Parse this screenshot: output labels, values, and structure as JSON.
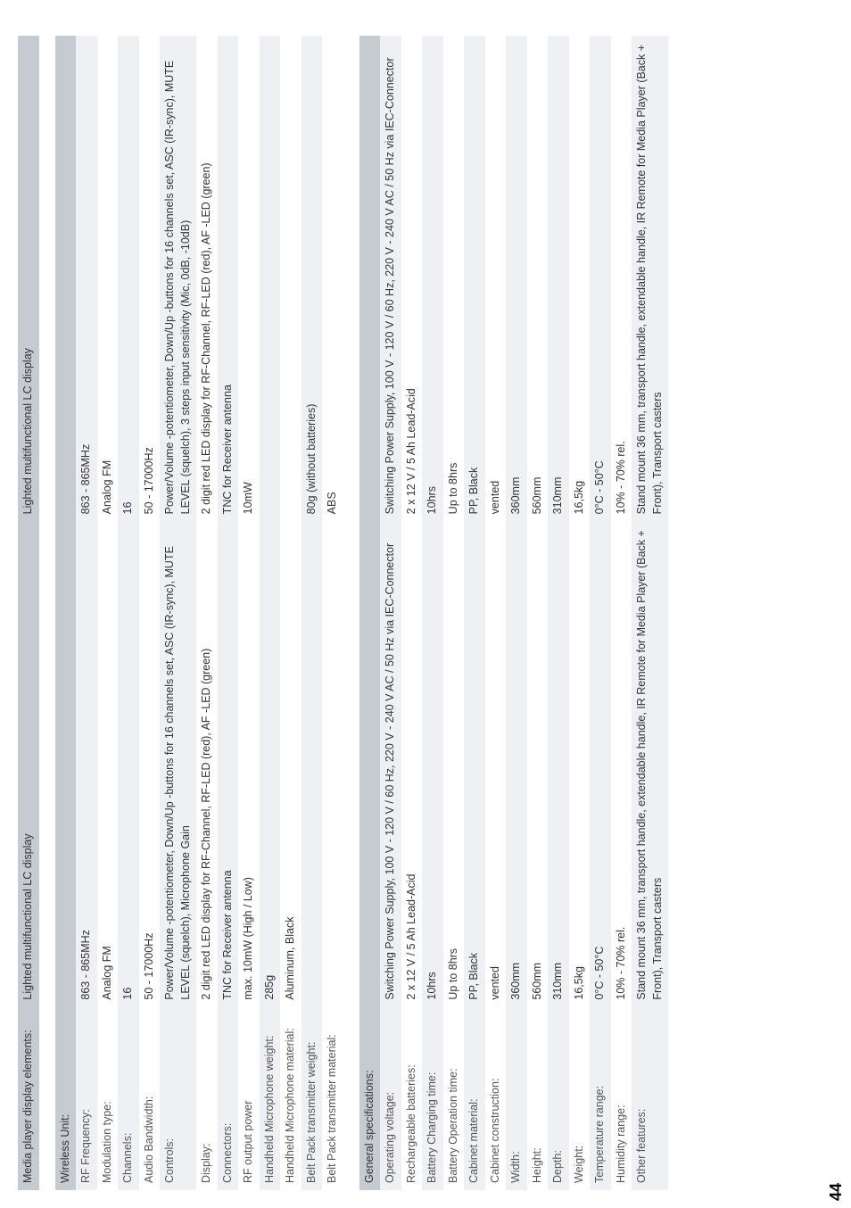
{
  "page_number": "44",
  "header": {
    "label": "Media player display elements:",
    "col1": "Lighted multifunctional LC display",
    "col2": "Lighted multifunctional LC display"
  },
  "sections": [
    {
      "title": "Wireless Unit:",
      "rows": [
        {
          "label": "RF Frequency:",
          "c1": "863 - 865MHz",
          "c2": "863 - 865MHz",
          "stripe": "light"
        },
        {
          "label": "Modulation type:",
          "c1": "Analog FM",
          "c2": "Analog FM",
          "stripe": "white"
        },
        {
          "label": "Channels:",
          "c1": "16",
          "c2": "16",
          "stripe": "light"
        },
        {
          "label": "Audio Bandwidth:",
          "c1": "50 - 17000Hz",
          "c2": "50 - 17000Hz",
          "stripe": "white"
        },
        {
          "label": "Controls:",
          "c1": "Power/Volume -potentiometer, Down/Up -buttons for 16 channels set, ASC (IR-sync), MUTE LEVEL (squelch), Microphone Gain",
          "c2": "Power/Volume -potentiometer, Down/Up -buttons for 16 channels set, ASC (IR-sync), MUTE LEVEL (squelch), 3 steps input sensitivity (Mic, 0dB, -10dB)",
          "stripe": "light"
        },
        {
          "label": "Display:",
          "c1": "2 digit red LED display for RF-Channel, RF-LED (red), AF -LED (green)",
          "c2": "2 digit red LED display for RF-Channel, RF-LED (red), AF -LED (green)",
          "stripe": "white"
        },
        {
          "label": "Connectors:",
          "c1": "TNC for Receiver antenna",
          "c2": "TNC for Receiver antenna",
          "stripe": "light"
        },
        {
          "label": "RF output power",
          "c1": "max. 10mW (High / Low)",
          "c2": "10mW",
          "stripe": "white"
        },
        {
          "label": "Handheld Microphone weight:",
          "c1": "285g",
          "c2": "",
          "stripe": "light"
        },
        {
          "label": "Handheld Microphone material:",
          "c1": "Aluminum, Black",
          "c2": "",
          "stripe": "white"
        },
        {
          "label": "Belt Pack transmitter weight:",
          "c1": "",
          "c2": "80g (without batteries)",
          "stripe": "light"
        },
        {
          "label": "Belt Pack transmitter material:",
          "c1": "",
          "c2": "ABS",
          "stripe": "white"
        }
      ]
    },
    {
      "title": "General specifications:",
      "rows": [
        {
          "label": "Operating voltage:",
          "c1": "Switching Power Supply, 100 V - 120 V / 60 Hz, 220 V - 240 V AC / 50 Hz via IEC-Connector",
          "c2": "Switching Power Supply, 100 V - 120 V / 60 Hz, 220 V - 240 V AC / 50 Hz via IEC-Connector",
          "stripe": "light"
        },
        {
          "label": "Rechargeable batteries:",
          "c1": "2 x 12 V / 5 Ah Lead-Acid",
          "c2": "2 x 12 V / 5 Ah Lead-Acid",
          "stripe": "white"
        },
        {
          "label": "Battery Charging time:",
          "c1": "10hrs",
          "c2": "10hrs",
          "stripe": "light"
        },
        {
          "label": "Battery Operation time:",
          "c1": "Up to 8hrs",
          "c2": "Up to 8hrs",
          "stripe": "white"
        },
        {
          "label": "Cabinet material:",
          "c1": "PP, Black",
          "c2": "PP, Black",
          "stripe": "light"
        },
        {
          "label": "Cabinet construction:",
          "c1": "vented",
          "c2": "vented",
          "stripe": "white"
        },
        {
          "label": "Width:",
          "c1": "360mm",
          "c2": "360mm",
          "stripe": "light"
        },
        {
          "label": "Height:",
          "c1": "560mm",
          "c2": "560mm",
          "stripe": "white"
        },
        {
          "label": "Depth:",
          "c1": "310mm",
          "c2": "310mm",
          "stripe": "light"
        },
        {
          "label": "Weight:",
          "c1": "16,5kg",
          "c2": "16,5kg",
          "stripe": "white"
        },
        {
          "label": "Temperature range:",
          "c1": "0°C - 50°C",
          "c2": "0°C - 50°C",
          "stripe": "light"
        },
        {
          "label": "Humidity range:",
          "c1": "10% - 70% rel.",
          "c2": "10% - 70% rel.",
          "stripe": "white"
        },
        {
          "label": "Other features:",
          "c1": "Stand mount 36 mm, transport handle, extendable handle, IR Remote for Media Player (Back + Front), Transport casters",
          "c2": "Stand mount 36 mm, transport handle, extendable handle, IR Remote for Media Player (Back + Front), Transport casters",
          "stripe": "light"
        }
      ]
    }
  ],
  "colors": {
    "section_bg": "#c6cad1",
    "stripe_light": "#eef0f3",
    "stripe_white": "#ffffff",
    "text": "#333333"
  }
}
